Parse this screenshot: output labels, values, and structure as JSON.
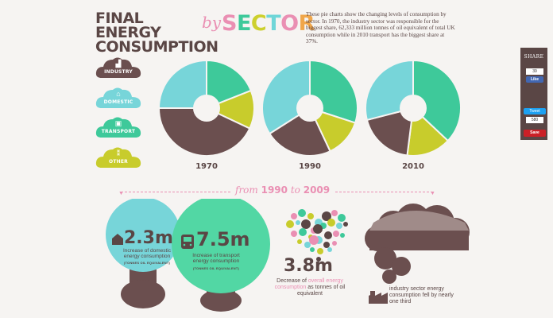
{
  "header": {
    "title_line1": "FINAL ENERGY",
    "title_line2": "CONSUMPTION",
    "title_by": "by",
    "title_sector": "SECTOR",
    "sector_letter_colors": [
      "#ea8fb3",
      "#3ec99a",
      "#cdd02e",
      "#6fd6d8",
      "#ea8fb3",
      "#f0a64a"
    ],
    "intro": "These pie charts show the changing levels of consumption by sector. In 1970, the industry sector was responsible for the biggest share, 62,333 million tonnes of oil equivalent of total UK consumption while in 2010 transport has the biggest share at 37%."
  },
  "legend": [
    {
      "label": "INDUSTRY",
      "icon": "factory-icon",
      "color": "#6b4f4f"
    },
    {
      "label": "DOMESTIC",
      "icon": "house-icon",
      "color": "#77d5d9"
    },
    {
      "label": "TRANSPORT",
      "icon": "train-icon",
      "color": "#3ec99a"
    },
    {
      "label": "OTHER",
      "icon": "other-icon",
      "color": "#c8cc2c"
    }
  ],
  "colors": {
    "industry": "#6b4f4f",
    "domestic": "#77d5d9",
    "transport": "#3ec99a",
    "other": "#c8cc2c",
    "pink": "#ea8fb3",
    "brown": "#5a4645"
  },
  "chart_data": [
    {
      "type": "pie",
      "title": "1970",
      "categories": [
        "TRANSPORT",
        "OTHER",
        "INDUSTRY",
        "DOMESTIC"
      ],
      "values": [
        19,
        13,
        43,
        25
      ]
    },
    {
      "type": "pie",
      "title": "1990",
      "categories": [
        "TRANSPORT",
        "OTHER",
        "INDUSTRY",
        "DOMESTIC"
      ],
      "values": [
        30,
        13,
        23,
        34
      ]
    },
    {
      "type": "pie",
      "title": "2010",
      "categories": [
        "TRANSPORT",
        "OTHER",
        "INDUSTRY",
        "DOMESTIC"
      ],
      "values": [
        37,
        15,
        19,
        29
      ]
    }
  ],
  "range": {
    "from": "from",
    "start": "1990",
    "to": "to",
    "end": "2009"
  },
  "stats": {
    "domestic": {
      "value": "2.3m",
      "text": "Increase of domestic energy consumption",
      "sub": "(TONNES OIL EQUIVALENT)"
    },
    "transport": {
      "value": "7.5m",
      "text": "Increase of transport energy consumption",
      "sub": "(TONNES OIL EQUIVALENT)"
    },
    "overall": {
      "value": "3.8m",
      "text_a": "Decrease of",
      "text_highlight": "overall energy consumption",
      "text_b": "as tonnes of oil equivalent"
    },
    "industry": {
      "text": "industry sector energy consumption fell by nearly one third"
    }
  },
  "share": {
    "title": "SHARE",
    "fb_count": "39",
    "fb_label": "Like",
    "tweet_label": "Tweet",
    "tweet_count": "580",
    "pin_label": "Save"
  }
}
